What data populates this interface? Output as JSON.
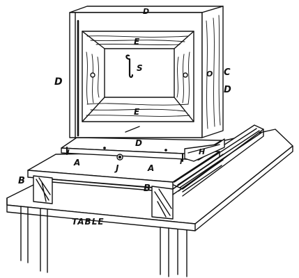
{
  "diagram": {
    "labels": {
      "top_D": "D",
      "left_D": "D",
      "frame_top_E": "E",
      "frame_bottom_E": "E",
      "spring_S": "S",
      "side_O": "O",
      "side_C": "C",
      "side_D": "D",
      "shelf_D": "D",
      "block_H": "H",
      "base_A_left": "A",
      "clamp_J": "J",
      "base_A_right": "A",
      "pin_I_left": "I",
      "pin_I_right": "I",
      "leg_B_left": "B",
      "leg_B_right": "B",
      "table": "TABLE"
    },
    "colors": {
      "ink": "#111111",
      "paper": "#ffffff"
    }
  }
}
